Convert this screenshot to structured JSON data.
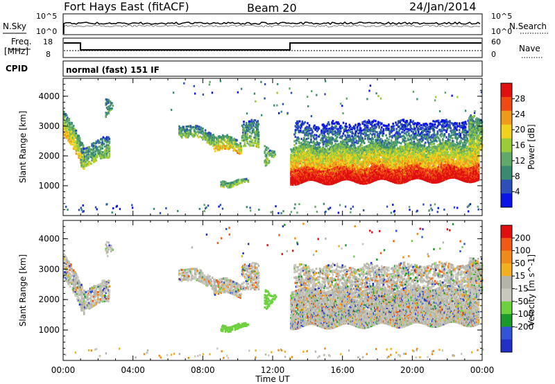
{
  "header": {
    "station": "Fort Hays East (fitACF)",
    "beam": "Beam 20",
    "date": "24/Jan/2014"
  },
  "panels": {
    "nsky_label": "N.Sky",
    "nsky_ticks": [
      "10^5",
      "10^0"
    ],
    "nsearch_label": "N.Search",
    "freq_label_1": "Freq.",
    "freq_label_2": "[MHz]",
    "freq_ticks": [
      "18",
      "8"
    ],
    "nave_label": "Nave",
    "nave_ticks": [
      "60",
      "0"
    ],
    "cpid_label": "CPID",
    "cpid_value": "normal (fast) 151 IF"
  },
  "colors": {
    "power": [
      "#0a14e6",
      "#2e4fb8",
      "#3a8a72",
      "#62a86a",
      "#9acc3a",
      "#f0d21e",
      "#f09a1a",
      "#f04a14",
      "#e01010"
    ],
    "velocity": [
      "#2230c8",
      "#3454d8",
      "#1a9a2a",
      "#6ed03e",
      "#c8c8be",
      "#b4b4aa",
      "#f0b020",
      "#f08a1a",
      "#f05a14",
      "#e01010"
    ]
  },
  "chart_data": [
    {
      "type": "heatmap",
      "name": "power",
      "ylabel": "Slant Range [km]",
      "xlabel": "Time UT",
      "x_ticks": [
        "00:00",
        "04:00",
        "08:00",
        "12:00",
        "16:00",
        "20:00",
        "00:00"
      ],
      "x_range_hours": [
        0,
        24
      ],
      "y_ticks": [
        1000,
        2000,
        3000,
        4000
      ],
      "ylim": [
        0,
        4600
      ],
      "colorbar_label": "Power [dB]",
      "colorbar_ticks": [
        4,
        8,
        12,
        16,
        20,
        24,
        28
      ]
    },
    {
      "type": "heatmap",
      "name": "velocity",
      "ylabel": "Slant Range [km]",
      "xlabel": "Time UT",
      "x_ticks": [
        "00:00",
        "04:00",
        "08:00",
        "12:00",
        "16:00",
        "20:00",
        "00:00"
      ],
      "x_range_hours": [
        0,
        24
      ],
      "y_ticks": [
        1000,
        2000,
        3000,
        4000
      ],
      "ylim": [
        0,
        4600
      ],
      "colorbar_label": "Velocity [m s^-1]",
      "colorbar_ticks": [
        200,
        100,
        50,
        15,
        -15,
        -50,
        -100,
        -200
      ]
    }
  ]
}
